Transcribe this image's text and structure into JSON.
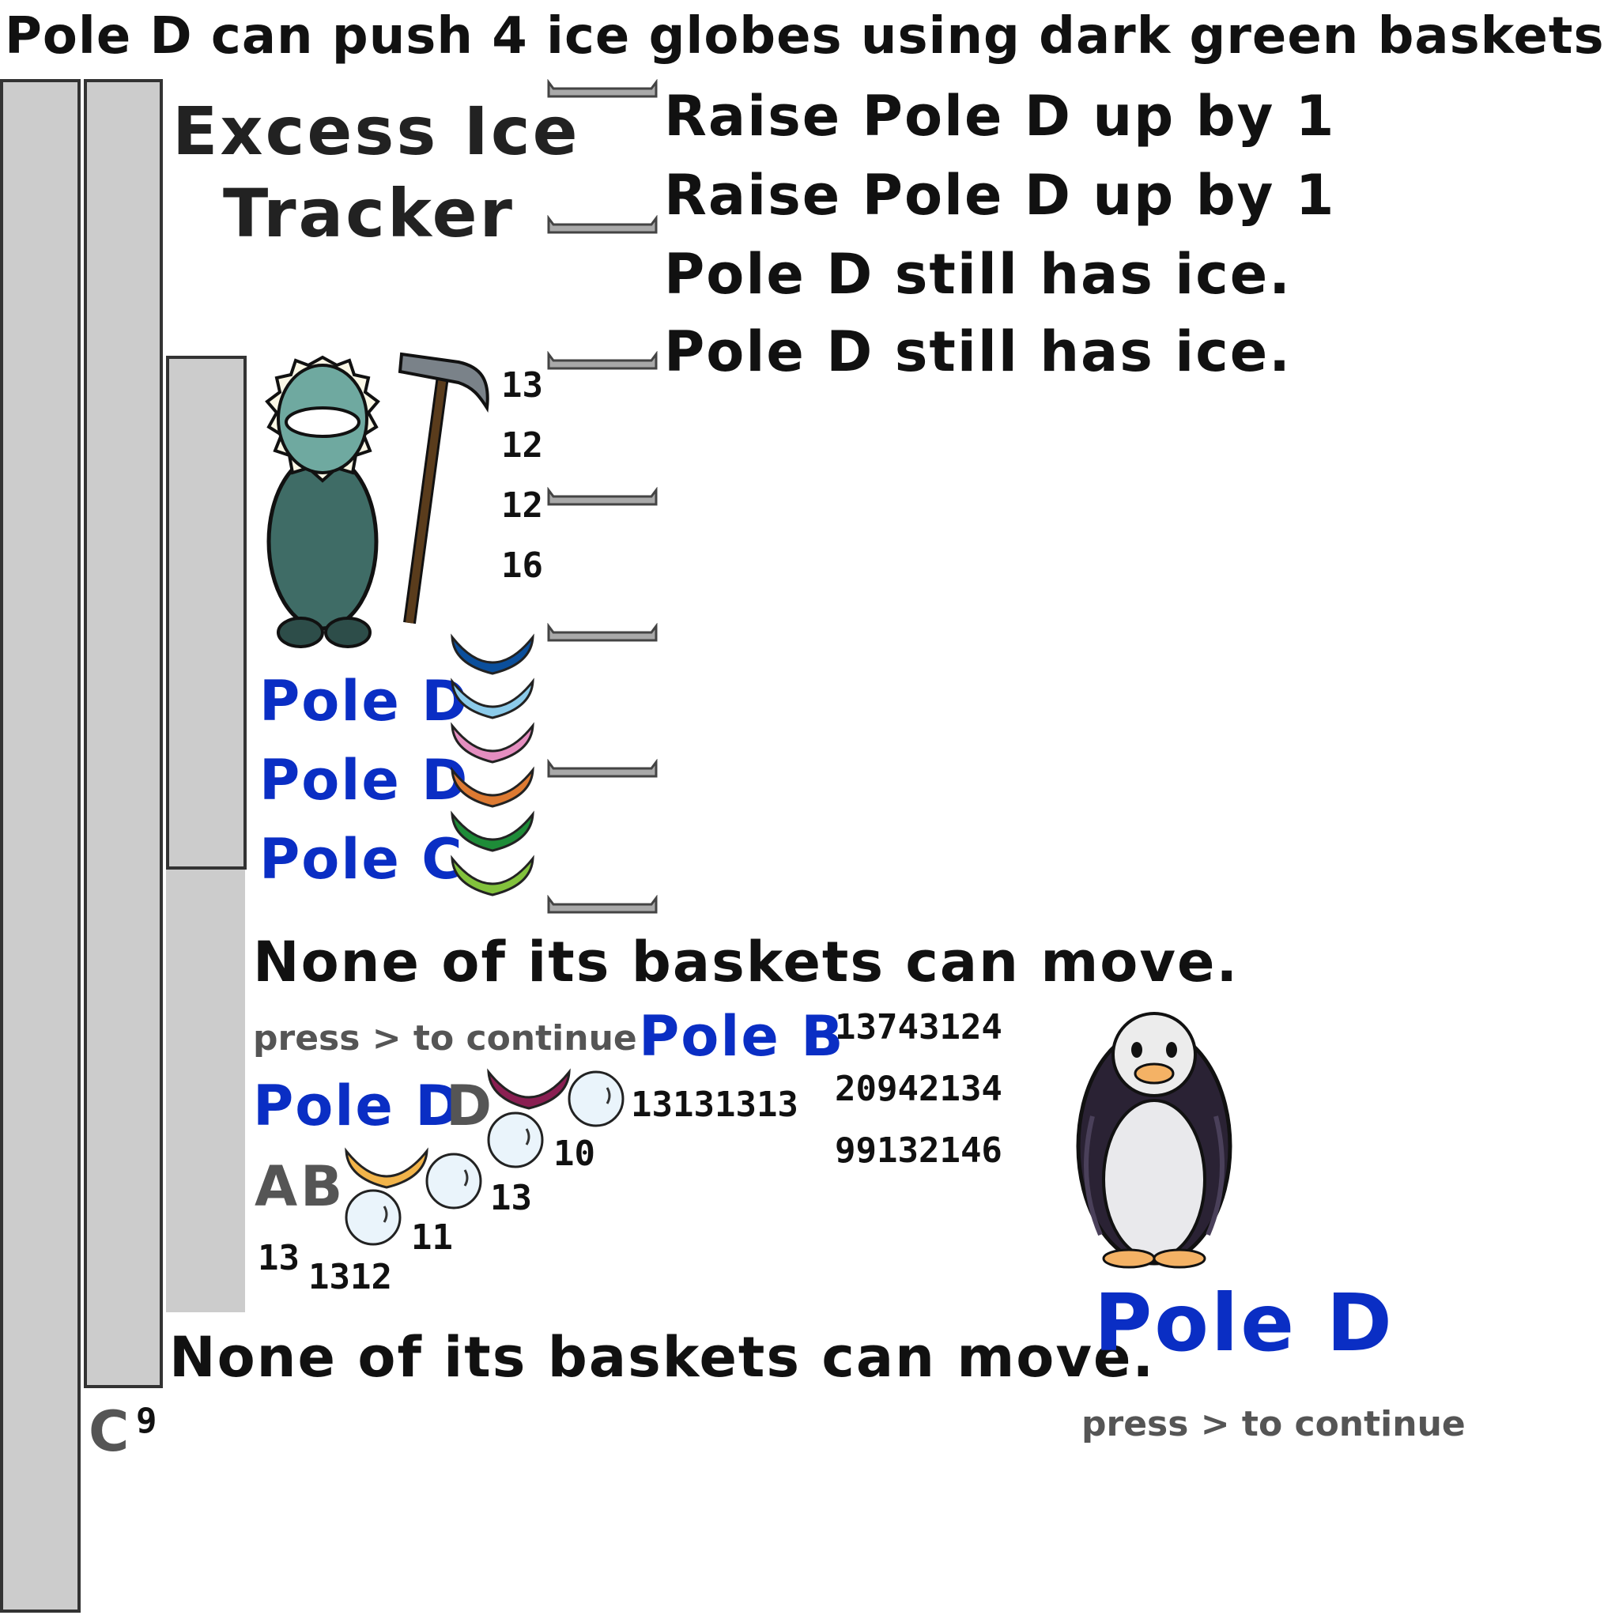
{
  "header": {
    "title": "Pole D can push 4 ice globes using dark green baskets"
  },
  "tracker": {
    "title_line1": "Excess Ice",
    "title_line2": "Tracker"
  },
  "log": {
    "line1": "Raise Pole D up by 1",
    "line2": "Raise Pole D up by 1",
    "line3": "Pole D still has ice.",
    "line4": "Pole D still has ice."
  },
  "ice_counts": [
    "13",
    "12",
    "12",
    "16"
  ],
  "pole_labels": [
    "Pole D",
    "Pole D",
    "Pole C"
  ],
  "basket_colors": [
    "#0b4f9c",
    "#8ccbea",
    "#e58ec0",
    "#dd7a32",
    "#1e8c38",
    "#82c23c"
  ],
  "messages": {
    "none_move_1": "None of its baskets can move.",
    "press_continue_1": "press > to continue",
    "none_move_2": "None of its baskets can move.",
    "press_continue_2": "press > to continue"
  },
  "mini": {
    "pole_b": "Pole B",
    "pole_d": "Pole D",
    "letter_d": "D",
    "letter_a": "A",
    "letter_b": "B",
    "letter_c": "C",
    "num_9": "9",
    "num_10": "10",
    "num_13a": "13",
    "num_11": "11",
    "num_13b": "13",
    "num_1312": "1312",
    "repeat_13": "13131313",
    "row1": "13743124",
    "row2": "20942134",
    "row3": "99132146",
    "basket_colors": {
      "maroon": "#8a1f52",
      "gold": "#f2b44a"
    }
  },
  "penguin": {
    "label": "Pole D"
  }
}
